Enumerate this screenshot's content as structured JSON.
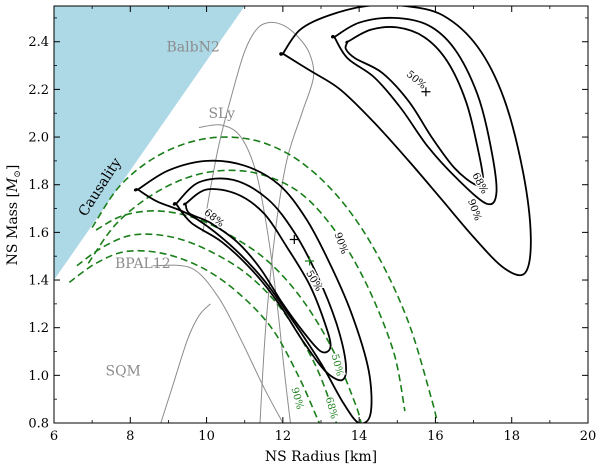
{
  "chart_data": {
    "type": "line",
    "xlabel": "NS Radius [km]",
    "ylabel_text": "NS Mass [",
    "ylabel_symbol": "M",
    "ylabel_sub": "⊙",
    "ylabel_close": "]",
    "xlim": [
      6,
      20
    ],
    "ylim": [
      0.8,
      2.55
    ],
    "xticks": [
      6,
      8,
      10,
      12,
      14,
      16,
      18,
      20
    ],
    "yticks": [
      0.8,
      1.0,
      1.2,
      1.4,
      1.6,
      1.8,
      2.0,
      2.2,
      2.4
    ],
    "colors": {
      "causality": "#add8e6",
      "black": "#000000",
      "green": "#1a7f1a",
      "eos_gray": "#8c8c8c"
    },
    "causality": {
      "label": "Causality",
      "polygon": [
        [
          6.0,
          1.4
        ],
        [
          6.0,
          2.55
        ],
        [
          11.0,
          2.55
        ]
      ]
    },
    "eos_curves": [
      {
        "name": "BalbN2",
        "label_at": [
          8.95,
          2.36
        ],
        "points": [
          [
            11.4,
            0.8
          ],
          [
            11.55,
            1.2
          ],
          [
            11.8,
            1.6
          ],
          [
            12.1,
            1.9
          ],
          [
            12.5,
            2.1
          ],
          [
            12.8,
            2.25
          ],
          [
            12.7,
            2.35
          ],
          [
            12.4,
            2.42
          ],
          [
            12.0,
            2.47
          ],
          [
            11.6,
            2.48
          ],
          [
            11.3,
            2.45
          ],
          [
            11.0,
            2.36
          ],
          [
            10.7,
            2.2
          ],
          [
            10.3,
            1.95
          ],
          [
            9.9,
            1.6
          ]
        ]
      },
      {
        "name": "SLy",
        "label_at": [
          10.05,
          2.08
        ],
        "points": [
          [
            12.2,
            0.8
          ],
          [
            12.05,
            1.0
          ],
          [
            11.85,
            1.3
          ],
          [
            11.6,
            1.6
          ],
          [
            11.3,
            1.85
          ],
          [
            10.9,
            2.0
          ],
          [
            10.4,
            2.05
          ],
          [
            9.8,
            2.04
          ]
        ]
      },
      {
        "name": "BPAL12",
        "label_at": [
          7.6,
          1.45
        ],
        "points": [
          [
            12.0,
            0.8
          ],
          [
            11.5,
            0.95
          ],
          [
            10.9,
            1.15
          ],
          [
            10.3,
            1.33
          ],
          [
            9.6,
            1.45
          ],
          [
            8.6,
            1.46
          ]
        ]
      },
      {
        "name": "SQM",
        "label_at": [
          7.35,
          1.0
        ],
        "points": [
          [
            8.8,
            0.8
          ],
          [
            9.1,
            0.95
          ],
          [
            9.5,
            1.15
          ],
          [
            9.8,
            1.25
          ],
          [
            10.1,
            1.3
          ]
        ]
      }
    ],
    "right_contours": [
      {
        "level": "50%",
        "points": [
          [
            13.7,
            2.4
          ],
          [
            14.3,
            2.45
          ],
          [
            15.0,
            2.46
          ],
          [
            15.7,
            2.42
          ],
          [
            16.3,
            2.32
          ],
          [
            16.8,
            2.15
          ],
          [
            17.1,
            1.96
          ],
          [
            17.25,
            1.82
          ],
          [
            17.05,
            1.8
          ],
          [
            16.5,
            1.87
          ],
          [
            15.9,
            2.0
          ],
          [
            15.3,
            2.15
          ],
          [
            14.6,
            2.27
          ],
          [
            13.9,
            2.33
          ],
          [
            13.65,
            2.37
          ],
          [
            13.7,
            2.4
          ]
        ]
      },
      {
        "level": "68%",
        "points": [
          [
            13.35,
            2.42
          ],
          [
            14.0,
            2.48
          ],
          [
            14.9,
            2.5
          ],
          [
            15.8,
            2.47
          ],
          [
            16.5,
            2.37
          ],
          [
            17.1,
            2.18
          ],
          [
            17.45,
            1.96
          ],
          [
            17.6,
            1.77
          ],
          [
            17.35,
            1.72
          ],
          [
            16.6,
            1.82
          ],
          [
            15.8,
            1.96
          ],
          [
            15.1,
            2.12
          ],
          [
            14.4,
            2.25
          ],
          [
            13.7,
            2.33
          ],
          [
            13.35,
            2.42
          ]
        ]
      },
      {
        "level": "90%",
        "points": [
          [
            12.0,
            2.35
          ],
          [
            12.45,
            2.45
          ],
          [
            13.2,
            2.51
          ],
          [
            14.2,
            2.55
          ],
          [
            15.2,
            2.55
          ],
          [
            16.2,
            2.51
          ],
          [
            17.1,
            2.38
          ],
          [
            17.8,
            2.16
          ],
          [
            18.3,
            1.85
          ],
          [
            18.5,
            1.58
          ],
          [
            18.35,
            1.43
          ],
          [
            17.8,
            1.45
          ],
          [
            17.0,
            1.58
          ],
          [
            16.1,
            1.75
          ],
          [
            15.3,
            1.9
          ],
          [
            14.4,
            2.06
          ],
          [
            13.5,
            2.2
          ],
          [
            12.7,
            2.28
          ],
          [
            12.0,
            2.35
          ]
        ]
      }
    ],
    "left_contours": [
      {
        "level": "50%",
        "points": [
          [
            9.45,
            1.72
          ],
          [
            10.0,
            1.78
          ],
          [
            10.8,
            1.76
          ],
          [
            11.5,
            1.68
          ],
          [
            12.1,
            1.54
          ],
          [
            12.7,
            1.38
          ],
          [
            13.1,
            1.22
          ],
          [
            13.25,
            1.12
          ],
          [
            13.0,
            1.1
          ],
          [
            12.55,
            1.18
          ],
          [
            12.0,
            1.3
          ],
          [
            11.4,
            1.45
          ],
          [
            10.8,
            1.56
          ],
          [
            10.1,
            1.64
          ],
          [
            9.55,
            1.68
          ],
          [
            9.45,
            1.72
          ]
        ]
      },
      {
        "level": "68%",
        "points": [
          [
            9.2,
            1.72
          ],
          [
            9.8,
            1.81
          ],
          [
            10.7,
            1.82
          ],
          [
            11.6,
            1.74
          ],
          [
            12.3,
            1.6
          ],
          [
            12.9,
            1.42
          ],
          [
            13.4,
            1.22
          ],
          [
            13.65,
            1.05
          ],
          [
            13.55,
            0.98
          ],
          [
            13.1,
            1.02
          ],
          [
            12.5,
            1.15
          ],
          [
            11.9,
            1.3
          ],
          [
            11.2,
            1.44
          ],
          [
            10.4,
            1.56
          ],
          [
            9.6,
            1.64
          ],
          [
            9.2,
            1.72
          ]
        ]
      },
      {
        "level": "90%",
        "points": [
          [
            8.2,
            1.78
          ],
          [
            9.0,
            1.86
          ],
          [
            10.0,
            1.9
          ],
          [
            11.0,
            1.88
          ],
          [
            11.9,
            1.8
          ],
          [
            12.6,
            1.66
          ],
          [
            13.2,
            1.48
          ],
          [
            13.8,
            1.26
          ],
          [
            14.25,
            1.02
          ],
          [
            14.3,
            0.84
          ],
          [
            14.0,
            0.8
          ],
          [
            13.6,
            0.88
          ],
          [
            13.0,
            1.05
          ],
          [
            12.3,
            1.22
          ],
          [
            11.5,
            1.4
          ],
          [
            10.6,
            1.55
          ],
          [
            9.6,
            1.67
          ],
          [
            8.7,
            1.73
          ],
          [
            8.2,
            1.78
          ]
        ]
      }
    ],
    "green_dashed": [
      {
        "points": [
          [
            7.0,
            1.62
          ],
          [
            7.7,
            1.79
          ],
          [
            8.6,
            1.91
          ],
          [
            9.6,
            1.98
          ],
          [
            10.6,
            2.0
          ],
          [
            11.6,
            1.97
          ],
          [
            12.6,
            1.88
          ],
          [
            13.6,
            1.72
          ],
          [
            14.5,
            1.5
          ],
          [
            15.3,
            1.22
          ],
          [
            15.9,
            0.9
          ],
          [
            16.05,
            0.8
          ]
        ]
      },
      {
        "points": [
          [
            6.9,
            1.47
          ],
          [
            7.6,
            1.63
          ],
          [
            8.5,
            1.75
          ],
          [
            9.5,
            1.83
          ],
          [
            10.5,
            1.86
          ],
          [
            11.5,
            1.84
          ],
          [
            12.5,
            1.76
          ],
          [
            13.4,
            1.6
          ],
          [
            14.2,
            1.38
          ],
          [
            14.9,
            1.1
          ],
          [
            15.2,
            0.85
          ]
        ]
      },
      {
        "points": [
          [
            7.1,
            1.61
          ],
          [
            7.8,
            1.67
          ],
          [
            8.7,
            1.69
          ],
          [
            9.7,
            1.66
          ],
          [
            10.6,
            1.59
          ],
          [
            11.6,
            1.48
          ],
          [
            12.5,
            1.32
          ],
          [
            13.3,
            1.11
          ],
          [
            13.9,
            0.88
          ],
          [
            14.05,
            0.8
          ]
        ]
      },
      {
        "points": [
          [
            6.6,
            1.46
          ],
          [
            7.3,
            1.54
          ],
          [
            8.1,
            1.59
          ],
          [
            9.1,
            1.58
          ],
          [
            10.1,
            1.52
          ],
          [
            11.1,
            1.42
          ],
          [
            12.0,
            1.27
          ],
          [
            12.8,
            1.06
          ],
          [
            13.3,
            0.86
          ],
          [
            13.4,
            0.8
          ]
        ]
      },
      {
        "points": [
          [
            6.4,
            1.39
          ],
          [
            7.1,
            1.47
          ],
          [
            7.9,
            1.52
          ],
          [
            8.9,
            1.51
          ],
          [
            9.9,
            1.45
          ],
          [
            10.8,
            1.35
          ],
          [
            11.7,
            1.2
          ],
          [
            12.4,
            1.0
          ],
          [
            12.9,
            0.82
          ],
          [
            12.95,
            0.8
          ]
        ]
      }
    ],
    "black_labels": [
      {
        "text": "50%",
        "x": 15.45,
        "y": 2.23,
        "rot": 40
      },
      {
        "text": "68%",
        "x": 17.1,
        "y": 1.8,
        "rot": 62
      },
      {
        "text": "90%",
        "x": 16.95,
        "y": 1.69,
        "rot": 70
      },
      {
        "text": "68%",
        "x": 10.15,
        "y": 1.65,
        "rot": 38
      },
      {
        "text": "90%",
        "x": 13.45,
        "y": 1.55,
        "rot": 70
      },
      {
        "text": "50%",
        "x": 12.75,
        "y": 1.39,
        "rot": 60
      }
    ],
    "green_labels": [
      {
        "text": "50%",
        "x": 13.35,
        "y": 1.04,
        "rot": 75
      },
      {
        "text": "90%",
        "x": 12.3,
        "y": 0.9,
        "rot": 75
      },
      {
        "text": "68%",
        "x": 13.2,
        "y": 0.86,
        "rot": 75
      }
    ],
    "markers": [
      {
        "color": "black",
        "x": 15.75,
        "y": 2.19
      },
      {
        "color": "black",
        "x": 12.3,
        "y": 1.57
      },
      {
        "color": "green",
        "x": 12.7,
        "y": 1.48
      }
    ]
  }
}
